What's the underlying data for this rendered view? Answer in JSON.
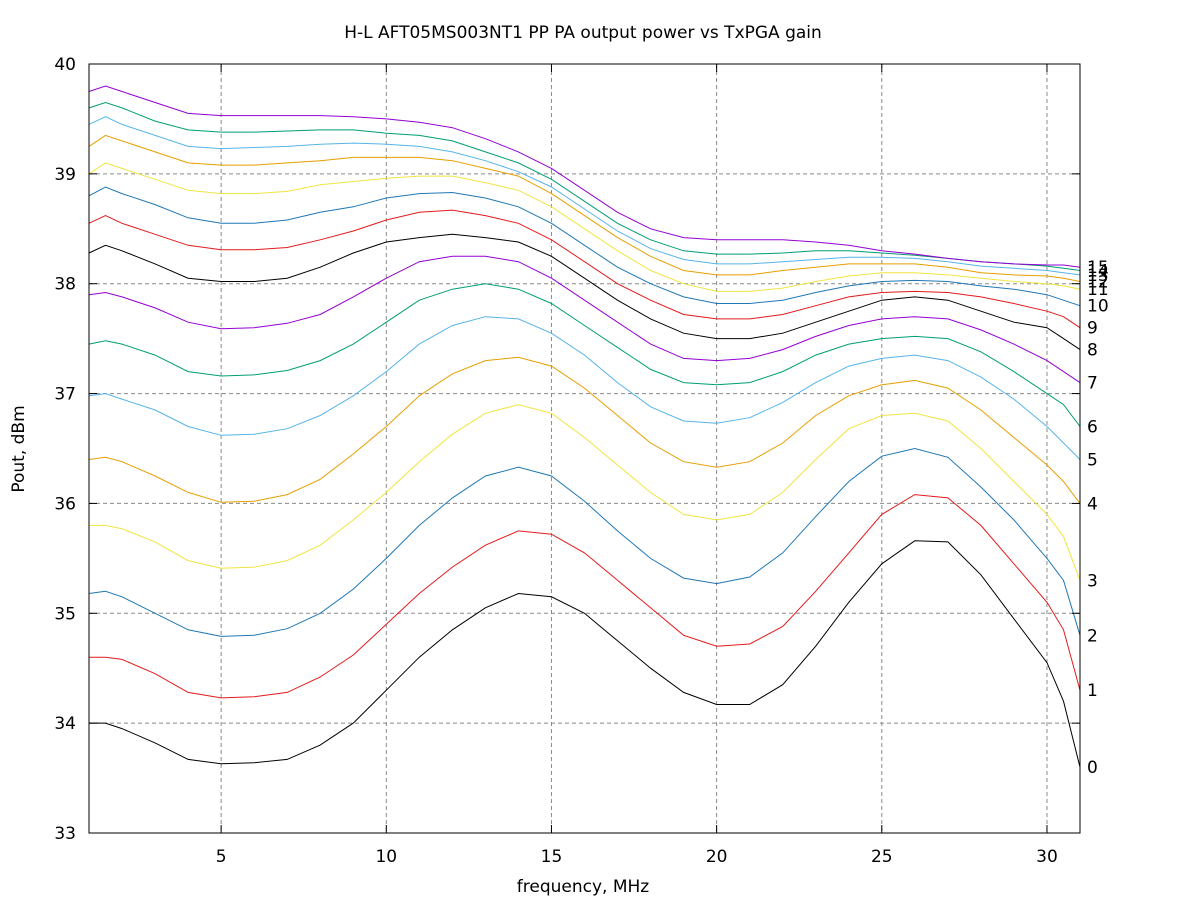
{
  "chart_data": {
    "type": "line",
    "title": "H-L AFT05MS003NT1 PP PA output power vs TxPGA gain",
    "xlabel": "frequency, MHz",
    "ylabel": "Pout, dBm",
    "xlim": [
      1,
      31
    ],
    "ylim": [
      33,
      40
    ],
    "xticks": [
      5,
      10,
      15,
      20,
      25,
      30
    ],
    "yticks": [
      33,
      34,
      35,
      36,
      37,
      38,
      39,
      40
    ],
    "grid": true,
    "x": [
      1,
      1.5,
      2,
      3,
      4,
      5,
      6,
      7,
      8,
      9,
      10,
      11,
      12,
      13,
      14,
      15,
      16,
      17,
      18,
      19,
      20,
      21,
      22,
      23,
      24,
      25,
      26,
      27,
      28,
      29,
      30,
      30.5,
      31
    ],
    "series": [
      {
        "name": "0",
        "color": "#000000",
        "values": [
          34.0,
          34.0,
          33.95,
          33.82,
          33.67,
          33.63,
          33.64,
          33.67,
          33.8,
          34.0,
          34.3,
          34.6,
          34.85,
          35.05,
          35.18,
          35.15,
          35.0,
          34.75,
          34.5,
          34.28,
          34.17,
          34.17,
          34.35,
          34.7,
          35.1,
          35.45,
          35.66,
          35.65,
          35.35,
          34.95,
          34.55,
          34.2,
          33.6
        ]
      },
      {
        "name": "1",
        "color": "#e41a1c",
        "values": [
          34.6,
          34.6,
          34.58,
          34.45,
          34.28,
          34.23,
          34.24,
          34.28,
          34.42,
          34.62,
          34.9,
          35.18,
          35.42,
          35.62,
          35.75,
          35.72,
          35.55,
          35.3,
          35.05,
          34.8,
          34.7,
          34.72,
          34.88,
          35.2,
          35.55,
          35.9,
          36.08,
          36.05,
          35.8,
          35.45,
          35.1,
          34.85,
          34.3
        ]
      },
      {
        "name": "2",
        "color": "#1f78b4",
        "values": [
          35.18,
          35.2,
          35.15,
          35.0,
          34.85,
          34.79,
          34.8,
          34.86,
          35.0,
          35.22,
          35.5,
          35.8,
          36.05,
          36.25,
          36.33,
          36.25,
          36.02,
          35.75,
          35.5,
          35.32,
          35.27,
          35.33,
          35.55,
          35.88,
          36.2,
          36.43,
          36.5,
          36.42,
          36.15,
          35.85,
          35.5,
          35.3,
          34.8
        ]
      },
      {
        "name": "3",
        "color": "#f0e442",
        "values": [
          35.8,
          35.8,
          35.77,
          35.65,
          35.48,
          35.41,
          35.42,
          35.48,
          35.62,
          35.85,
          36.1,
          36.38,
          36.63,
          36.82,
          36.9,
          36.82,
          36.6,
          36.35,
          36.1,
          35.9,
          35.85,
          35.9,
          36.1,
          36.4,
          36.68,
          36.8,
          36.82,
          36.75,
          36.5,
          36.2,
          35.9,
          35.7,
          35.3
        ]
      },
      {
        "name": "4",
        "color": "#e69f00",
        "values": [
          36.4,
          36.42,
          36.38,
          36.25,
          36.1,
          36.01,
          36.02,
          36.08,
          36.22,
          36.45,
          36.7,
          36.98,
          37.18,
          37.3,
          37.33,
          37.25,
          37.05,
          36.8,
          36.55,
          36.38,
          36.33,
          36.38,
          36.55,
          36.8,
          36.98,
          37.08,
          37.12,
          37.05,
          36.85,
          36.6,
          36.35,
          36.2,
          36.0
        ]
      },
      {
        "name": "5",
        "color": "#56b4e9",
        "values": [
          36.98,
          37.0,
          36.95,
          36.85,
          36.7,
          36.62,
          36.63,
          36.68,
          36.8,
          36.98,
          37.2,
          37.45,
          37.62,
          37.7,
          37.68,
          37.55,
          37.35,
          37.1,
          36.88,
          36.75,
          36.73,
          36.78,
          36.92,
          37.1,
          37.25,
          37.32,
          37.35,
          37.3,
          37.15,
          36.95,
          36.7,
          36.55,
          36.4
        ]
      },
      {
        "name": "6",
        "color": "#009e73",
        "values": [
          37.45,
          37.48,
          37.45,
          37.35,
          37.2,
          37.16,
          37.17,
          37.21,
          37.3,
          37.45,
          37.65,
          37.85,
          37.95,
          38.0,
          37.95,
          37.82,
          37.62,
          37.42,
          37.22,
          37.1,
          37.08,
          37.1,
          37.2,
          37.35,
          37.45,
          37.5,
          37.52,
          37.5,
          37.38,
          37.2,
          37.0,
          36.9,
          36.7
        ]
      },
      {
        "name": "7",
        "color": "#9400d3",
        "values": [
          37.9,
          37.92,
          37.88,
          37.78,
          37.65,
          37.59,
          37.6,
          37.64,
          37.72,
          37.88,
          38.05,
          38.2,
          38.25,
          38.25,
          38.2,
          38.05,
          37.85,
          37.65,
          37.45,
          37.32,
          37.3,
          37.32,
          37.4,
          37.52,
          37.62,
          37.68,
          37.7,
          37.68,
          37.58,
          37.45,
          37.3,
          37.2,
          37.1
        ]
      },
      {
        "name": "8",
        "color": "#000000",
        "values": [
          38.28,
          38.35,
          38.3,
          38.18,
          38.05,
          38.02,
          38.02,
          38.05,
          38.15,
          38.28,
          38.38,
          38.42,
          38.45,
          38.42,
          38.38,
          38.25,
          38.05,
          37.85,
          37.68,
          37.55,
          37.5,
          37.5,
          37.55,
          37.65,
          37.75,
          37.85,
          37.88,
          37.85,
          37.75,
          37.65,
          37.6,
          37.5,
          37.4
        ]
      },
      {
        "name": "9",
        "color": "#e41a1c",
        "values": [
          38.55,
          38.62,
          38.55,
          38.45,
          38.35,
          38.31,
          38.31,
          38.33,
          38.4,
          38.48,
          38.58,
          38.65,
          38.67,
          38.62,
          38.55,
          38.4,
          38.2,
          38.0,
          37.85,
          37.72,
          37.68,
          37.68,
          37.72,
          37.8,
          37.88,
          37.92,
          37.93,
          37.92,
          37.88,
          37.82,
          37.75,
          37.7,
          37.6
        ]
      },
      {
        "name": "10",
        "color": "#1f78b4",
        "values": [
          38.8,
          38.88,
          38.82,
          38.72,
          38.6,
          38.55,
          38.55,
          38.58,
          38.65,
          38.7,
          38.78,
          38.82,
          38.83,
          38.78,
          38.7,
          38.55,
          38.35,
          38.15,
          38.0,
          37.88,
          37.82,
          37.82,
          37.85,
          37.92,
          37.98,
          38.02,
          38.03,
          38.02,
          37.98,
          37.95,
          37.9,
          37.85,
          37.8
        ]
      },
      {
        "name": "11",
        "color": "#f0e442",
        "values": [
          39.0,
          39.1,
          39.05,
          38.95,
          38.85,
          38.82,
          38.82,
          38.84,
          38.9,
          38.93,
          38.96,
          38.98,
          38.98,
          38.92,
          38.85,
          38.7,
          38.5,
          38.3,
          38.12,
          38.0,
          37.93,
          37.93,
          37.96,
          38.02,
          38.07,
          38.1,
          38.1,
          38.08,
          38.05,
          38.02,
          38.0,
          37.98,
          37.95
        ]
      },
      {
        "name": "12",
        "color": "#e69f00",
        "values": [
          39.25,
          39.35,
          39.3,
          39.2,
          39.1,
          39.08,
          39.08,
          39.1,
          39.12,
          39.15,
          39.15,
          39.15,
          39.12,
          39.05,
          38.98,
          38.82,
          38.62,
          38.42,
          38.25,
          38.12,
          38.08,
          38.08,
          38.12,
          38.15,
          38.18,
          38.18,
          38.18,
          38.15,
          38.1,
          38.08,
          38.07,
          38.05,
          38.02
        ]
      },
      {
        "name": "13",
        "color": "#56b4e9",
        "values": [
          39.45,
          39.52,
          39.45,
          39.35,
          39.25,
          39.23,
          39.24,
          39.25,
          39.27,
          39.28,
          39.27,
          39.25,
          39.2,
          39.12,
          39.02,
          38.88,
          38.68,
          38.48,
          38.32,
          38.22,
          38.18,
          38.18,
          38.2,
          38.22,
          38.24,
          38.24,
          38.23,
          38.2,
          38.16,
          38.14,
          38.12,
          38.1,
          38.08
        ]
      },
      {
        "name": "14",
        "color": "#009e73",
        "values": [
          39.6,
          39.65,
          39.6,
          39.48,
          39.4,
          39.38,
          39.38,
          39.39,
          39.4,
          39.4,
          39.37,
          39.35,
          39.3,
          39.2,
          39.1,
          38.95,
          38.75,
          38.55,
          38.4,
          38.3,
          38.27,
          38.27,
          38.28,
          38.3,
          38.3,
          38.28,
          38.26,
          38.23,
          38.2,
          38.18,
          38.16,
          38.14,
          38.12
        ]
      },
      {
        "name": "15",
        "color": "#9400d3",
        "values": [
          39.75,
          39.8,
          39.75,
          39.65,
          39.55,
          39.53,
          39.53,
          39.53,
          39.53,
          39.52,
          39.5,
          39.47,
          39.42,
          39.32,
          39.2,
          39.05,
          38.85,
          38.65,
          38.5,
          38.42,
          38.4,
          38.4,
          38.4,
          38.38,
          38.35,
          38.3,
          38.27,
          38.23,
          38.2,
          38.18,
          38.17,
          38.17,
          38.15
        ]
      }
    ]
  }
}
